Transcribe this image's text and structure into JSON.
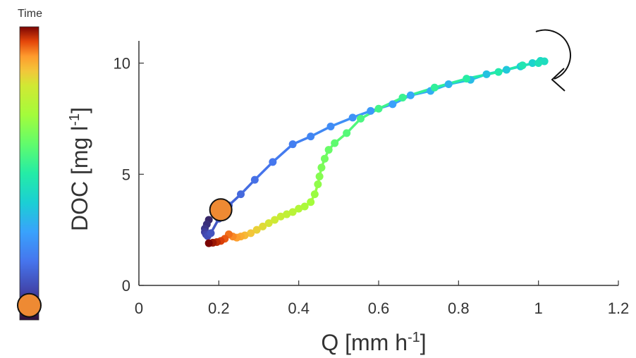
{
  "chart_data": {
    "type": "scatter",
    "xlabel": {
      "main": "Q [mm h",
      "sup": "-1",
      "close": "]"
    },
    "ylabel": {
      "main": "DOC [mg l",
      "sup": "-1",
      "close": "]"
    },
    "xlim": [
      0,
      1.2
    ],
    "ylim": [
      0,
      11
    ],
    "xticks": [
      0,
      0.2,
      0.4,
      0.6,
      0.8,
      1,
      1.2
    ],
    "xtick_labels": [
      "0",
      "0.2",
      "0.4",
      "0.6",
      "0.8",
      "1",
      "1.2"
    ],
    "yticks": [
      0,
      5,
      10
    ],
    "ytick_labels": [
      "0",
      "5",
      "10"
    ],
    "grid": false,
    "colorbar": {
      "label": "Time",
      "colormap": "turbo",
      "marker_position": 0.05,
      "marker_color": "#ee8a33"
    },
    "rotation": "clockwise",
    "current_point": {
      "x": 0.205,
      "y": 3.4,
      "color": "#ee8a33"
    },
    "x": [
      0.175,
      0.17,
      0.165,
      0.165,
      0.168,
      0.172,
      0.18,
      0.2,
      0.225,
      0.255,
      0.29,
      0.335,
      0.385,
      0.43,
      0.48,
      0.535,
      0.58,
      0.635,
      0.68,
      0.73,
      0.775,
      0.83,
      0.87,
      0.92,
      0.955,
      0.985,
      1.005,
      1.015,
      1.0,
      0.96,
      0.9,
      0.82,
      0.74,
      0.66,
      0.6,
      0.555,
      0.52,
      0.49,
      0.475,
      0.465,
      0.457,
      0.452,
      0.448,
      0.44,
      0.43,
      0.415,
      0.4,
      0.385,
      0.37,
      0.355,
      0.34,
      0.325,
      0.31,
      0.295,
      0.28,
      0.265,
      0.255,
      0.245,
      0.235,
      0.225,
      0.215,
      0.205,
      0.195,
      0.185,
      0.175
    ],
    "y": [
      2.95,
      2.75,
      2.55,
      2.4,
      2.3,
      2.22,
      2.35,
      3.0,
      3.6,
      4.1,
      4.75,
      5.55,
      6.35,
      6.7,
      7.15,
      7.55,
      7.85,
      8.15,
      8.55,
      8.75,
      9.05,
      9.25,
      9.5,
      9.7,
      9.85,
      10.0,
      10.1,
      10.08,
      10.0,
      9.9,
      9.6,
      9.3,
      8.9,
      8.45,
      7.95,
      7.5,
      6.85,
      6.4,
      6.1,
      5.7,
      5.3,
      4.9,
      4.55,
      4.1,
      3.75,
      3.55,
      3.45,
      3.3,
      3.2,
      3.1,
      2.95,
      2.8,
      2.65,
      2.5,
      2.35,
      2.25,
      2.2,
      2.15,
      2.2,
      2.3,
      2.1,
      2.0,
      1.95,
      1.92,
      1.9
    ]
  }
}
